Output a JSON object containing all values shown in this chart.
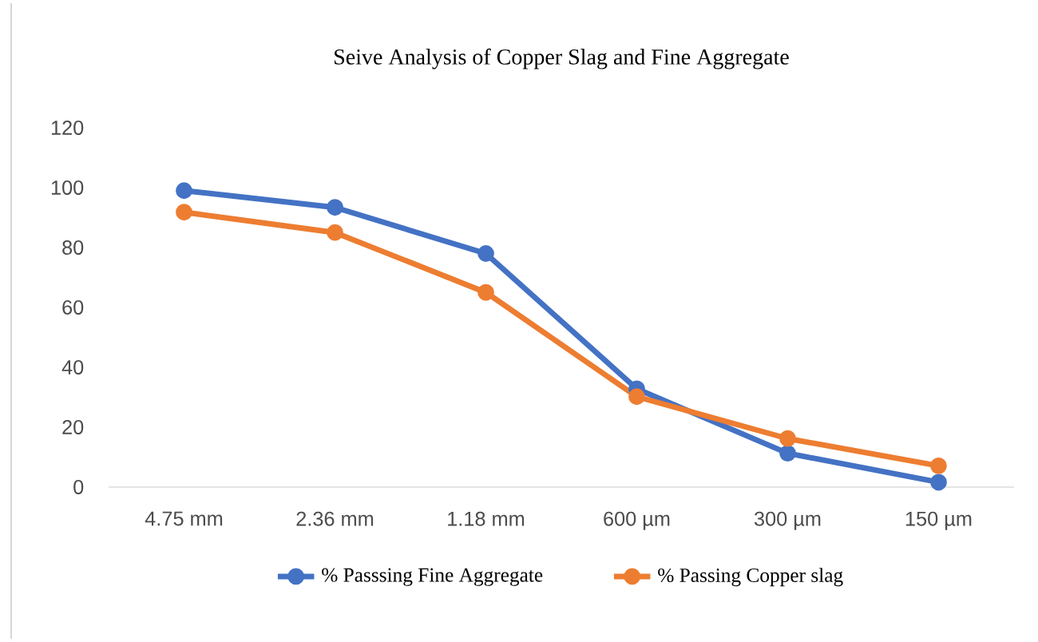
{
  "chart_data": {
    "type": "line",
    "title": "Seive Analysis of Copper Slag and Fine Aggregate",
    "categories": [
      "4.75 mm",
      "2.36 mm",
      "1.18 mm",
      "600 µm",
      "300 µm",
      "150 µm"
    ],
    "series": [
      {
        "name": "% Passsing Fine Aggregate",
        "color": "#4472c4",
        "values": [
          99,
          93.4,
          78,
          32.8,
          11.3,
          1.6
        ]
      },
      {
        "name": "% Passing  Copper slag",
        "color": "#ed7d31",
        "values": [
          91.8,
          85,
          65,
          30.2,
          16.2,
          7.1
        ]
      }
    ],
    "ylim": [
      0,
      120
    ],
    "yticks": [
      0,
      20,
      40,
      60,
      80,
      100,
      120
    ],
    "legend": "bottom",
    "marker": "circle",
    "line_style": "solid"
  }
}
